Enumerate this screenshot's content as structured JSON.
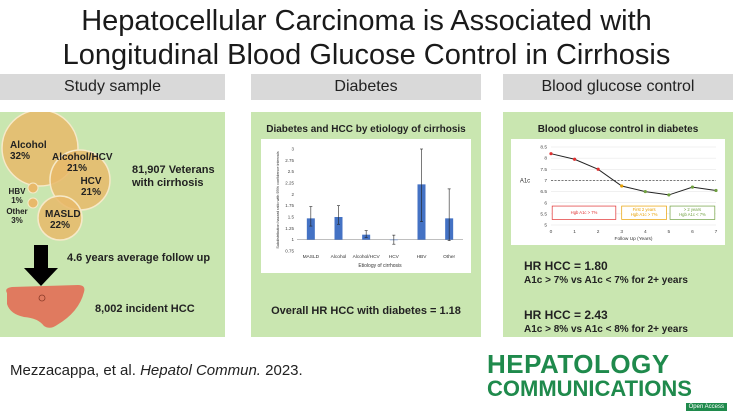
{
  "title_line1": "Hepatocellular Carcinoma is Associated with",
  "title_line2": "Longitudinal Blood Glucose Control in Cirrhosis",
  "columns": {
    "col1": "Study sample",
    "col2": "Diabetes",
    "col3": "Blood glucose control"
  },
  "venn": {
    "alcohol_label": "Alcohol",
    "alcohol_pct": "32%",
    "alc_hcv_label": "Alcohol/HCV",
    "alc_hcv_pct": "21%",
    "hcv_label": "HCV",
    "hcv_pct": "21%",
    "hbv_label": "HBV",
    "hbv_pct": "1%",
    "other_label": "Other",
    "other_pct": "3%",
    "masld_label": "MASLD",
    "masld_pct": "22%"
  },
  "study": {
    "veterans_line1": "81,907 Veterans",
    "veterans_line2": "with cirrhosis",
    "followup": "4.6 years average follow up",
    "incident": "8,002 incident HCC"
  },
  "diabetes": {
    "chart_title": "Diabetes and HCC by etiology of cirrhosis",
    "overall": "Overall HR HCC with diabetes = 1.18"
  },
  "glucose": {
    "chart_title": "Blood glucose control in diabetes",
    "hr1": "HR HCC = 1.80",
    "hr1_sub": "A1c > 7% vs A1c < 7% for 2+ years",
    "hr2": "HR HCC = 2.43",
    "hr2_sub": "A1c > 8% vs A1c < 8% for 2+ years"
  },
  "citation": {
    "authors": "Mezzacappa, et al.",
    "journal": "Hepatol Commun.",
    "year": "2023."
  },
  "logo": {
    "line1": "HEPATOLOGY",
    "line2": "COMMUNICATIONS",
    "badge": "Open Access"
  },
  "chart_data": [
    {
      "type": "bar",
      "title": "Diabetes and HCC by etiology of cirrhosis",
      "xlabel": "Etiology of cirrhosis",
      "ylabel": "Subdistribution hazard ratio with 95% confidence intervals",
      "categories": [
        "MASLD",
        "Alcohol",
        "Alcohol/HCV",
        "HCV",
        "HBV",
        "Other"
      ],
      "values": [
        1.47,
        1.5,
        1.11,
        0.99,
        2.22,
        1.47
      ],
      "ci_low": [
        1.3,
        1.34,
        1.05,
        0.9,
        1.4,
        0.98
      ],
      "ci_high": [
        1.73,
        1.75,
        1.2,
        1.1,
        3.0,
        2.12
      ],
      "yticks": [
        "0.75",
        "1",
        "1.25",
        "1.5",
        "1.75",
        "2",
        "2.25",
        "2.5",
        "2.75",
        "3"
      ],
      "ylim": [
        0.75,
        3
      ]
    },
    {
      "type": "line",
      "title": "Blood glucose control in diabetes",
      "xlabel": "Follow Up (Years)",
      "ylabel": "A1c",
      "x": [
        0,
        1,
        2,
        3,
        4,
        5,
        6,
        7
      ],
      "values": [
        8.2,
        7.95,
        7.5,
        6.75,
        6.5,
        6.35,
        6.7,
        6.55
      ],
      "reference_line": 7,
      "xticks": [
        "0",
        "1",
        "2",
        "3",
        "4",
        "5",
        "6",
        "7"
      ],
      "yticks": [
        "5",
        "5.5",
        "6",
        "6.5",
        "7",
        "7.5",
        "8",
        "8.5"
      ],
      "ylim": [
        5,
        8.5
      ],
      "annotations": [
        {
          "text": "Hgb A1c > 7%",
          "color": "#e03030"
        },
        {
          "text": "First 2 years Hgb A1c > 7%",
          "color": "#e8a000"
        },
        {
          "text": "> 2 years Hgb A1c < 7%",
          "color": "#70a040"
        }
      ]
    }
  ]
}
